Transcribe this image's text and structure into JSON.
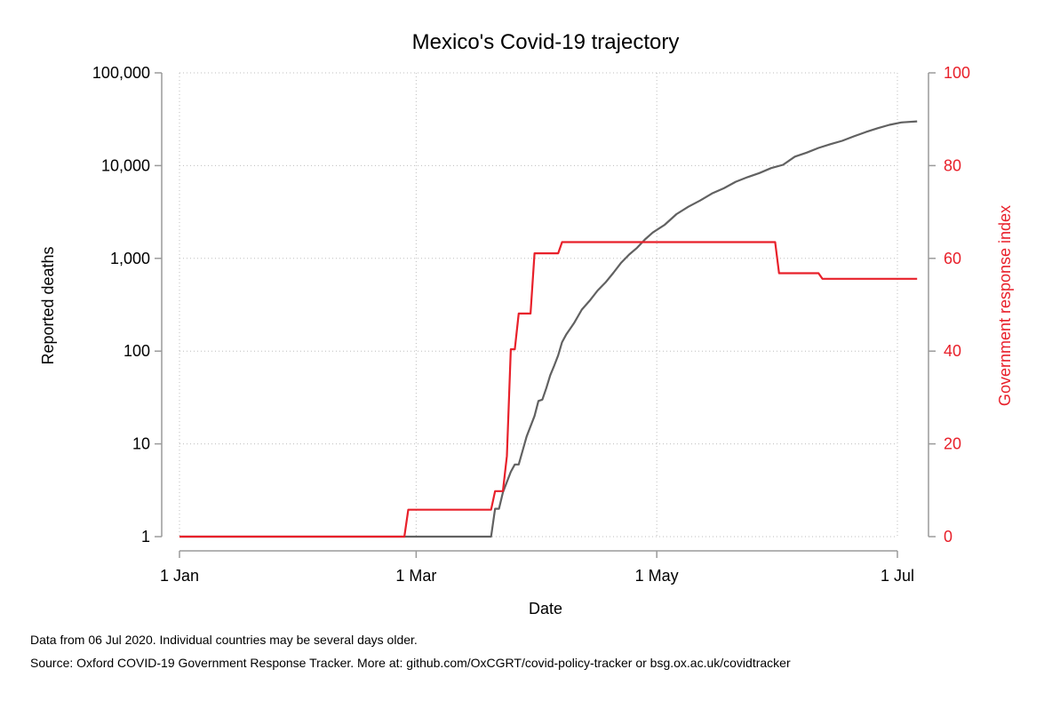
{
  "chart_data": {
    "type": "line",
    "title": "Mexico's Covid-19 trajectory",
    "xlabel": "Date",
    "ylabel": "Reported deaths",
    "y2label": "Government response index",
    "yscale": "log",
    "ylim": [
      1,
      100000
    ],
    "y2lim": [
      0,
      100
    ],
    "xlim": [
      "2020-01-01",
      "2020-07-06"
    ],
    "grid": true,
    "x_ticks": [
      {
        "date": "2020-01-01",
        "label": "1 Jan"
      },
      {
        "date": "2020-03-01",
        "label": "1 Mar"
      },
      {
        "date": "2020-05-01",
        "label": "1 May"
      },
      {
        "date": "2020-07-01",
        "label": "1 Jul"
      }
    ],
    "y_ticks": [
      {
        "value": 1,
        "label": "1"
      },
      {
        "value": 10,
        "label": "10"
      },
      {
        "value": 100,
        "label": "100"
      },
      {
        "value": 1000,
        "label": "1,000"
      },
      {
        "value": 10000,
        "label": "10,000"
      },
      {
        "value": 100000,
        "label": "100,000"
      }
    ],
    "y2_ticks": [
      {
        "value": 0,
        "label": "0"
      },
      {
        "value": 20,
        "label": "20"
      },
      {
        "value": 40,
        "label": "40"
      },
      {
        "value": 60,
        "label": "60"
      },
      {
        "value": 80,
        "label": "80"
      },
      {
        "value": 100,
        "label": "100"
      }
    ],
    "colors": {
      "deaths": "#616161",
      "response": "#e8202a",
      "axis": "#9a9a9a",
      "y2_text": "#e8202a"
    },
    "series": [
      {
        "axis": "left",
        "values": [
          [
            "2020-01-01",
            1
          ],
          [
            "2020-03-20",
            1
          ],
          [
            "2020-03-21",
            2
          ],
          [
            "2020-03-22",
            2
          ],
          [
            "2020-03-23",
            3
          ],
          [
            "2020-03-25",
            5
          ],
          [
            "2020-03-26",
            6
          ],
          [
            "2020-03-27",
            6
          ],
          [
            "2020-03-29",
            12
          ],
          [
            "2020-03-31",
            20
          ],
          [
            "2020-04-01",
            29
          ],
          [
            "2020-04-02",
            30
          ],
          [
            "2020-04-03",
            40
          ],
          [
            "2020-04-04",
            55
          ],
          [
            "2020-04-05",
            70
          ],
          [
            "2020-04-06",
            90
          ],
          [
            "2020-04-07",
            125
          ],
          [
            "2020-04-08",
            150
          ],
          [
            "2020-04-10",
            200
          ],
          [
            "2020-04-12",
            280
          ],
          [
            "2020-04-14",
            350
          ],
          [
            "2020-04-16",
            450
          ],
          [
            "2020-04-18",
            550
          ],
          [
            "2020-04-20",
            700
          ],
          [
            "2020-04-22",
            900
          ],
          [
            "2020-04-24",
            1100
          ],
          [
            "2020-04-26",
            1300
          ],
          [
            "2020-04-28",
            1600
          ],
          [
            "2020-04-30",
            1900
          ],
          [
            "2020-05-03",
            2300
          ],
          [
            "2020-05-06",
            3000
          ],
          [
            "2020-05-09",
            3600
          ],
          [
            "2020-05-12",
            4200
          ],
          [
            "2020-05-15",
            5000
          ],
          [
            "2020-05-18",
            5700
          ],
          [
            "2020-05-21",
            6700
          ],
          [
            "2020-05-24",
            7500
          ],
          [
            "2020-05-27",
            8300
          ],
          [
            "2020-05-30",
            9400
          ],
          [
            "2020-06-02",
            10200
          ],
          [
            "2020-06-05",
            12500
          ],
          [
            "2020-06-08",
            13800
          ],
          [
            "2020-06-11",
            15500
          ],
          [
            "2020-06-14",
            17000
          ],
          [
            "2020-06-17",
            18500
          ],
          [
            "2020-06-20",
            20700
          ],
          [
            "2020-06-23",
            23000
          ],
          [
            "2020-06-26",
            25300
          ],
          [
            "2020-06-29",
            27500
          ],
          [
            "2020-07-02",
            29200
          ],
          [
            "2020-07-06",
            30000
          ]
        ]
      },
      {
        "axis": "right",
        "values": [
          [
            "2020-01-01",
            0
          ],
          [
            "2020-02-27",
            0
          ],
          [
            "2020-02-28",
            5.8
          ],
          [
            "2020-03-20",
            5.8
          ],
          [
            "2020-03-21",
            9.8
          ],
          [
            "2020-03-23",
            9.8
          ],
          [
            "2020-03-24",
            17.4
          ],
          [
            "2020-03-25",
            40.4
          ],
          [
            "2020-03-26",
            40.4
          ],
          [
            "2020-03-27",
            48.1
          ],
          [
            "2020-03-30",
            48.1
          ],
          [
            "2020-03-31",
            61.1
          ],
          [
            "2020-04-06",
            61.1
          ],
          [
            "2020-04-07",
            63.5
          ],
          [
            "2020-05-31",
            63.5
          ],
          [
            "2020-06-01",
            56.8
          ],
          [
            "2020-06-11",
            56.8
          ],
          [
            "2020-06-12",
            55.6
          ],
          [
            "2020-07-06",
            55.6
          ]
        ]
      }
    ],
    "notes": [
      "Data from 06 Jul 2020. Individual countries may be several days older.",
      "Source: Oxford COVID-19 Government Response Tracker. More at: github.com/OxCGRT/covid-policy-tracker or bsg.ox.ac.uk/covidtracker"
    ]
  }
}
